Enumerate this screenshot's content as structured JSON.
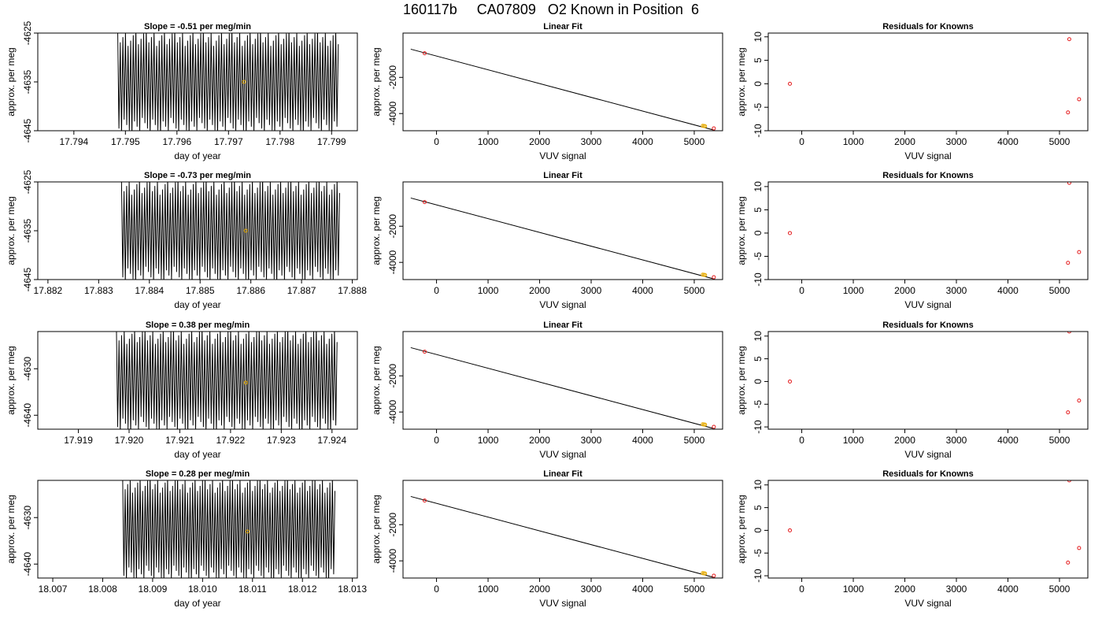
{
  "page": {
    "title": "160117b     CA07809   O2 Known in Position  6"
  },
  "colors": {
    "trace": "#000000",
    "point_marker": "#e6ab02",
    "residual_marker": "#e41a1c",
    "axis": "#000000"
  },
  "chart_data": [
    {
      "type": "line",
      "row": 1,
      "panel": "time-series",
      "title": "Slope =  -0.51  per meg/min",
      "xlabel": "day of year",
      "ylabel": "approx. per meg",
      "xlim": [
        17.7933,
        17.7995
      ],
      "ylim": [
        -4645,
        -4625
      ],
      "xticks": [
        "17.794",
        "17.795",
        "17.796",
        "17.797",
        "17.798",
        "17.799"
      ],
      "xtick_values": [
        17.794,
        17.795,
        17.796,
        17.797,
        17.798,
        17.799
      ],
      "yticks": [
        "-4645",
        "-4635",
        "-4625"
      ],
      "ytick_values": [
        -4645,
        -4635,
        -4625
      ],
      "x_start": 17.79485,
      "x_end": 17.79913,
      "trace_low": -4645,
      "trace_high": -4625,
      "highlight": {
        "x": 17.7973,
        "y": -4635
      }
    },
    {
      "type": "scatter",
      "row": 1,
      "panel": "linear-fit",
      "title": "Linear Fit",
      "xlabel": "VUV signal",
      "ylabel": "approx. per meg",
      "xlim": [
        -650,
        5550
      ],
      "ylim": [
        -4950,
        450
      ],
      "xticks": [
        "0",
        "1000",
        "2000",
        "3000",
        "4000",
        "5000"
      ],
      "xtick_values": [
        0,
        1000,
        2000,
        3000,
        4000,
        5000
      ],
      "yticks": [
        "-4000",
        "-2000"
      ],
      "ytick_values": [
        -4000,
        -2000
      ],
      "line": {
        "x": [
          -500,
          5400
        ],
        "y": [
          -440,
          -4930
        ]
      },
      "points": [
        {
          "x": -230,
          "y": -666
        },
        {
          "x": 5165,
          "y": -4680
        },
        {
          "x": 5190,
          "y": -4690
        },
        {
          "x": 5210,
          "y": -4700
        },
        {
          "x": 5380,
          "y": -4820
        }
      ]
    },
    {
      "type": "scatter",
      "row": 1,
      "panel": "residuals",
      "title": "Residuals for Knowns",
      "xlabel": "VUV signal",
      "ylabel": "approx. per meg",
      "xlim": [
        -650,
        5550
      ],
      "ylim": [
        -10,
        10.8
      ],
      "xticks": [
        "0",
        "1000",
        "2000",
        "3000",
        "4000",
        "5000"
      ],
      "xtick_values": [
        0,
        1000,
        2000,
        3000,
        4000,
        5000
      ],
      "yticks": [
        "-10",
        "-5",
        "0",
        "5",
        "10"
      ],
      "ytick_values": [
        -10,
        -5,
        0,
        5,
        10
      ],
      "points": [
        {
          "x": -230,
          "y": 0
        },
        {
          "x": 5190,
          "y": 9.5
        },
        {
          "x": 5165,
          "y": -6.1
        },
        {
          "x": 5380,
          "y": -3.3
        }
      ]
    },
    {
      "type": "line",
      "row": 2,
      "panel": "time-series",
      "title": "Slope =  -0.73  per meg/min",
      "xlabel": "day of year",
      "ylabel": "approx. per meg",
      "xlim": [
        17.8818,
        17.8881
      ],
      "ylim": [
        -4645,
        -4625
      ],
      "xticks": [
        "17.882",
        "17.883",
        "17.884",
        "17.885",
        "17.886",
        "17.887",
        "17.888"
      ],
      "xtick_values": [
        17.882,
        17.883,
        17.884,
        17.885,
        17.886,
        17.887,
        17.888
      ],
      "yticks": [
        "-4645",
        "-4635",
        "-4625"
      ],
      "ytick_values": [
        -4645,
        -4635,
        -4625
      ],
      "x_start": 17.88345,
      "x_end": 17.88775,
      "trace_low": -4645,
      "trace_high": -4625,
      "highlight": {
        "x": 17.8859,
        "y": -4635
      }
    },
    {
      "type": "scatter",
      "row": 2,
      "panel": "linear-fit",
      "title": "Linear Fit",
      "xlabel": "VUV signal",
      "ylabel": "approx. per meg",
      "xlim": [
        -650,
        5550
      ],
      "ylim": [
        -4950,
        450
      ],
      "xticks": [
        "0",
        "1000",
        "2000",
        "3000",
        "4000",
        "5000"
      ],
      "xtick_values": [
        0,
        1000,
        2000,
        3000,
        4000,
        5000
      ],
      "yticks": [
        "-4000",
        "-2000"
      ],
      "ytick_values": [
        -4000,
        -2000
      ],
      "line": {
        "x": [
          -500,
          5400
        ],
        "y": [
          -440,
          -4930
        ]
      },
      "points": [
        {
          "x": -230,
          "y": -666
        },
        {
          "x": 5165,
          "y": -4680
        },
        {
          "x": 5190,
          "y": -4690
        },
        {
          "x": 5210,
          "y": -4700
        },
        {
          "x": 5380,
          "y": -4820
        }
      ]
    },
    {
      "type": "scatter",
      "row": 2,
      "panel": "residuals",
      "title": "Residuals for Knowns",
      "xlabel": "VUV signal",
      "ylabel": "approx. per meg",
      "xlim": [
        -650,
        5550
      ],
      "ylim": [
        -10,
        11
      ],
      "xticks": [
        "0",
        "1000",
        "2000",
        "3000",
        "4000",
        "5000"
      ],
      "xtick_values": [
        0,
        1000,
        2000,
        3000,
        4000,
        5000
      ],
      "yticks": [
        "-10",
        "-5",
        "0",
        "5",
        "10"
      ],
      "ytick_values": [
        -10,
        -5,
        0,
        5,
        10
      ],
      "points": [
        {
          "x": -230,
          "y": 0
        },
        {
          "x": 5190,
          "y": 10.8
        },
        {
          "x": 5165,
          "y": -6.4
        },
        {
          "x": 5380,
          "y": -4.1
        }
      ]
    },
    {
      "type": "line",
      "row": 3,
      "panel": "time-series",
      "title": "Slope =  0.38  per meg/min",
      "xlabel": "day of year",
      "ylabel": "approx. per meg",
      "xlim": [
        17.9182,
        17.9245
      ],
      "ylim": [
        -4643,
        -4622
      ],
      "xticks": [
        "17.919",
        "17.920",
        "17.921",
        "17.922",
        "17.923",
        "17.924"
      ],
      "xtick_values": [
        17.919,
        17.92,
        17.921,
        17.922,
        17.923,
        17.924
      ],
      "yticks": [
        "-4640",
        "-4630"
      ],
      "ytick_values": [
        -4640,
        -4630
      ],
      "x_start": 17.91975,
      "x_end": 17.9241,
      "trace_low": -4643,
      "trace_high": -4622,
      "highlight": {
        "x": 17.9223,
        "y": -4633
      }
    },
    {
      "type": "scatter",
      "row": 3,
      "panel": "linear-fit",
      "title": "Linear Fit",
      "xlabel": "VUV signal",
      "ylabel": "approx. per meg",
      "xlim": [
        -650,
        5550
      ],
      "ylim": [
        -4950,
        450
      ],
      "xticks": [
        "0",
        "1000",
        "2000",
        "3000",
        "4000",
        "5000"
      ],
      "xtick_values": [
        0,
        1000,
        2000,
        3000,
        4000,
        5000
      ],
      "yticks": [
        "-4000",
        "-2000"
      ],
      "ytick_values": [
        -4000,
        -2000
      ],
      "line": {
        "x": [
          -500,
          5400
        ],
        "y": [
          -440,
          -4930
        ]
      },
      "points": [
        {
          "x": -230,
          "y": -666
        },
        {
          "x": 5165,
          "y": -4680
        },
        {
          "x": 5190,
          "y": -4690
        },
        {
          "x": 5210,
          "y": -4700
        },
        {
          "x": 5380,
          "y": -4820
        }
      ]
    },
    {
      "type": "scatter",
      "row": 3,
      "panel": "residuals",
      "title": "Residuals for Knowns",
      "xlabel": "VUV signal",
      "ylabel": "approx. per meg",
      "xlim": [
        -650,
        5550
      ],
      "ylim": [
        -10.5,
        11
      ],
      "xticks": [
        "0",
        "1000",
        "2000",
        "3000",
        "4000",
        "5000"
      ],
      "xtick_values": [
        0,
        1000,
        2000,
        3000,
        4000,
        5000
      ],
      "yticks": [
        "-10",
        "-5",
        "0",
        "5",
        "10"
      ],
      "ytick_values": [
        -10,
        -5,
        0,
        5,
        10
      ],
      "points": [
        {
          "x": -230,
          "y": 0
        },
        {
          "x": 5190,
          "y": 11
        },
        {
          "x": 5165,
          "y": -6.8
        },
        {
          "x": 5380,
          "y": -4.2
        }
      ]
    },
    {
      "type": "line",
      "row": 4,
      "panel": "time-series",
      "title": "Slope =  0.28  per meg/min",
      "xlabel": "day of year",
      "ylabel": "approx. per meg",
      "xlim": [
        18.0067,
        18.0131
      ],
      "ylim": [
        -4643,
        -4622
      ],
      "xticks": [
        "18.007",
        "18.008",
        "18.009",
        "18.010",
        "18.011",
        "18.012",
        "18.013"
      ],
      "xtick_values": [
        18.007,
        18.008,
        18.009,
        18.01,
        18.011,
        18.012,
        18.013
      ],
      "yticks": [
        "-4640",
        "-4630"
      ],
      "ytick_values": [
        -4640,
        -4630
      ],
      "x_start": 18.0084,
      "x_end": 18.01265,
      "trace_low": -4643,
      "trace_high": -4622,
      "highlight": {
        "x": 18.0109,
        "y": -4633
      }
    },
    {
      "type": "scatter",
      "row": 4,
      "panel": "linear-fit",
      "title": "Linear Fit",
      "xlabel": "VUV signal",
      "ylabel": "approx. per meg",
      "xlim": [
        -650,
        5550
      ],
      "ylim": [
        -4950,
        450
      ],
      "xticks": [
        "0",
        "1000",
        "2000",
        "3000",
        "4000",
        "5000"
      ],
      "xtick_values": [
        0,
        1000,
        2000,
        3000,
        4000,
        5000
      ],
      "yticks": [
        "-4000",
        "-2000"
      ],
      "ytick_values": [
        -4000,
        -2000
      ],
      "line": {
        "x": [
          -500,
          5400
        ],
        "y": [
          -440,
          -4930
        ]
      },
      "points": [
        {
          "x": -230,
          "y": -666
        },
        {
          "x": 5165,
          "y": -4680
        },
        {
          "x": 5190,
          "y": -4690
        },
        {
          "x": 5210,
          "y": -4700
        },
        {
          "x": 5380,
          "y": -4820
        }
      ]
    },
    {
      "type": "scatter",
      "row": 4,
      "panel": "residuals",
      "title": "Residuals for Knowns",
      "xlabel": "VUV signal",
      "ylabel": "approx. per meg",
      "xlim": [
        -650,
        5550
      ],
      "ylim": [
        -10.5,
        11
      ],
      "xticks": [
        "0",
        "1000",
        "2000",
        "3000",
        "4000",
        "5000"
      ],
      "xtick_values": [
        0,
        1000,
        2000,
        3000,
        4000,
        5000
      ],
      "yticks": [
        "-10",
        "-5",
        "0",
        "5",
        "10"
      ],
      "ytick_values": [
        -10,
        -5,
        0,
        5,
        10
      ],
      "points": [
        {
          "x": -230,
          "y": 0
        },
        {
          "x": 5190,
          "y": 11
        },
        {
          "x": 5165,
          "y": -7.1
        },
        {
          "x": 5380,
          "y": -3.9
        }
      ]
    }
  ]
}
